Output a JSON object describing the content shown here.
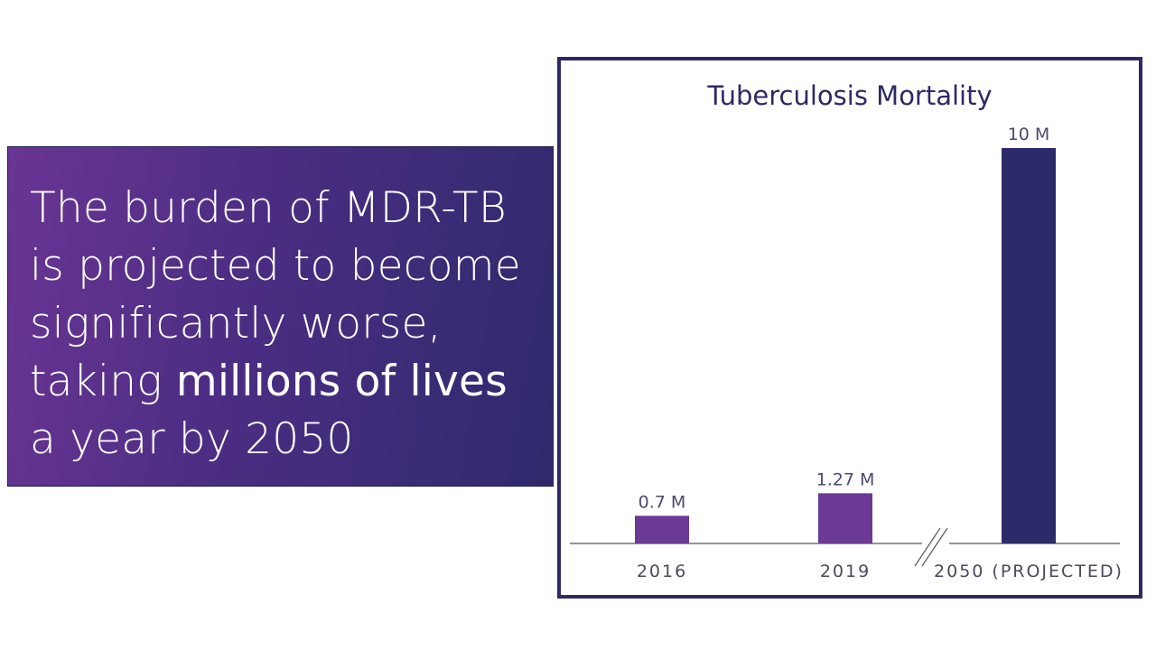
{
  "callout": {
    "text_normal_1": "The burden of MDR-TB is projected to become significantly worse, taking ",
    "text_strong": "millions of lives",
    "text_normal_2": " a year by 2050"
  },
  "colors": {
    "bar_past": "#6c3996",
    "bar_projected": "#2d2a6a",
    "frame": "#2d2a63"
  },
  "chart_data": {
    "type": "bar",
    "title": "Tuberculosis Mortality",
    "categories": [
      "2016",
      "2019",
      "2050 (PROJECTED)"
    ],
    "values": [
      0.7,
      1.27,
      10
    ],
    "value_labels": [
      "0.7 M",
      "1.27 M",
      "10 M"
    ],
    "unit": "M",
    "xlabel": "",
    "ylabel": "",
    "ylim": [
      0,
      10
    ],
    "grid": false,
    "axis_break_before_last": true
  }
}
